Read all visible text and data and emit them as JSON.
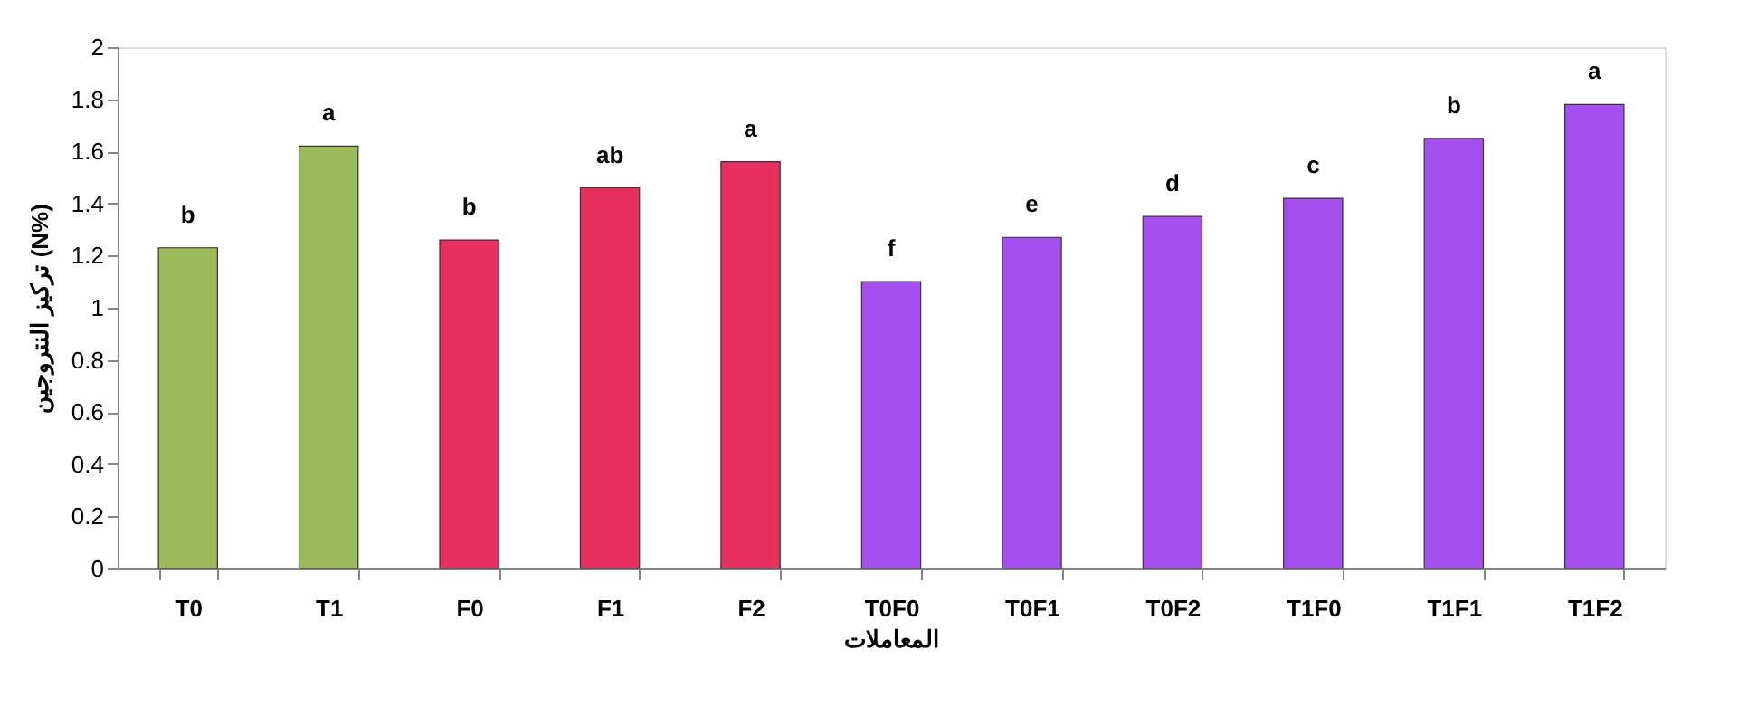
{
  "chart_data": {
    "type": "bar",
    "xlabel": "المعاملات",
    "ylabel": "تركيز النتروجين (N%)",
    "categories": [
      "T0",
      "T1",
      "F0",
      "F1",
      "F2",
      "T0F0",
      "T0F1",
      "T0F2",
      "T1F0",
      "T1F1",
      "T1F2"
    ],
    "values": [
      1.23,
      1.62,
      1.26,
      1.46,
      1.56,
      1.1,
      1.27,
      1.35,
      1.42,
      1.65,
      1.78
    ],
    "colors": [
      "#9bbb59",
      "#9bbb59",
      "#e8305e",
      "#e8305e",
      "#e8305e",
      "#a64ff0",
      "#a64ff0",
      "#a64ff0",
      "#a64ff0",
      "#a64ff0",
      "#a64ff0"
    ],
    "ylim": [
      0,
      2
    ],
    "yticks": [
      0,
      0.2,
      0.4,
      0.6,
      0.8,
      1,
      1.2,
      1.4,
      1.6,
      1.8,
      2
    ],
    "grid": false,
    "annotations": [
      {
        "text": "b",
        "x": "T0",
        "y": 1.23
      },
      {
        "text": "a",
        "x": "T1",
        "y": 1.62
      },
      {
        "text": "b",
        "x": "F0",
        "y": 1.26
      },
      {
        "text": "ab",
        "x": "F1",
        "y": 1.46
      },
      {
        "text": "a",
        "x": "F2",
        "y": 1.56
      },
      {
        "text": "f",
        "x": "T0F0",
        "y": 1.1
      },
      {
        "text": "e",
        "x": "T0F1",
        "y": 1.27
      },
      {
        "text": "d",
        "x": "T0F2",
        "y": 1.35
      },
      {
        "text": "c",
        "x": "T1F0",
        "y": 1.42
      },
      {
        "text": "b",
        "x": "T1F1",
        "y": 1.65
      },
      {
        "text": "a",
        "x": "T1F2",
        "y": 1.78
      }
    ]
  }
}
